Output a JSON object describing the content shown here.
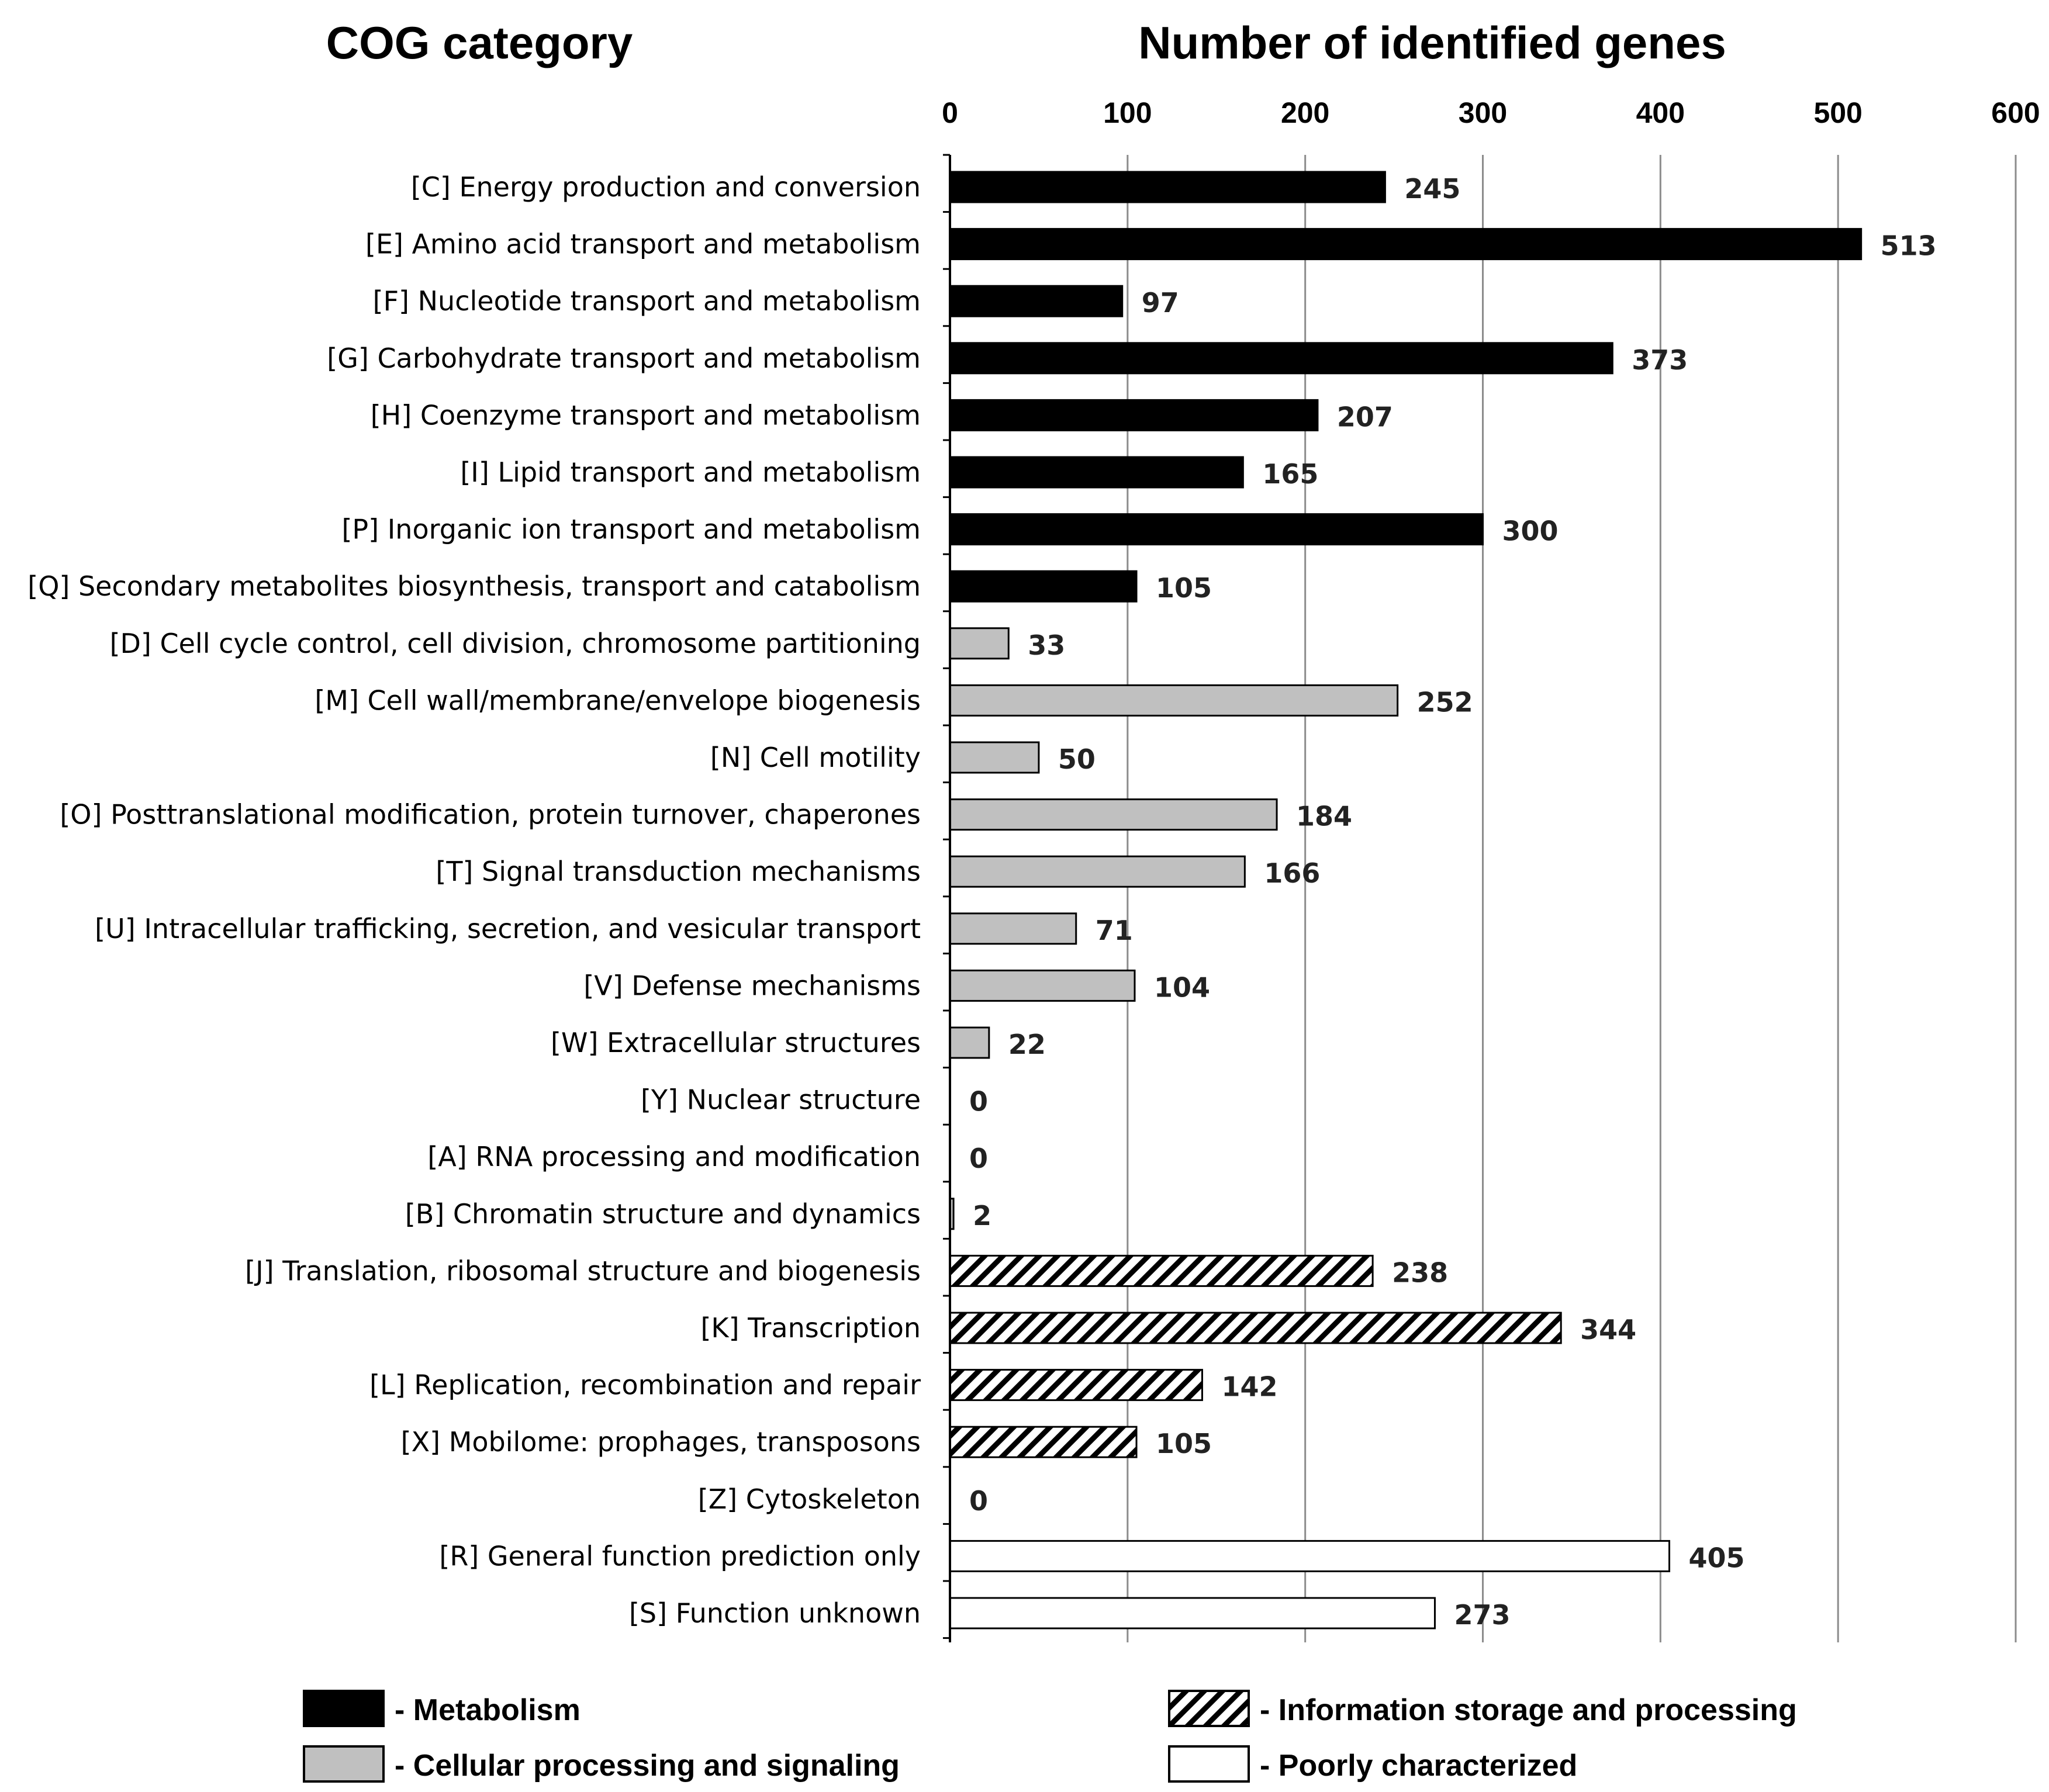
{
  "chart_data": {
    "type": "bar",
    "orientation": "horizontal",
    "title": "Number of identified genes",
    "category_axis_title": "COG category",
    "xlim": [
      0,
      600
    ],
    "ticks": [
      0,
      100,
      200,
      300,
      400,
      500,
      600
    ],
    "grid": true,
    "legend_position": "bottom",
    "groups": [
      {
        "id": "metabolism",
        "label": "- Metabolism",
        "fill": "#000000",
        "pattern": "solid"
      },
      {
        "id": "cellular",
        "label": "- Cellular processing and signaling",
        "fill": "#c0c0c0",
        "pattern": "solid"
      },
      {
        "id": "information",
        "label": "- Information storage and processing",
        "fill": "#ffffff",
        "pattern": "hatch"
      },
      {
        "id": "poorly",
        "label": "- Poorly characterized",
        "fill": "#ffffff",
        "pattern": "solid"
      }
    ],
    "categories": [
      "[C] Energy production and conversion",
      "[E] Amino acid transport and metabolism",
      "[F] Nucleotide transport and metabolism",
      "[G] Carbohydrate transport and metabolism",
      "[H] Coenzyme transport and metabolism",
      "[I] Lipid transport and metabolism",
      "[P] Inorganic ion transport and metabolism",
      "[Q] Secondary metabolites biosynthesis, transport and catabolism",
      "[D] Cell cycle control, cell division, chromosome partitioning",
      "[M] Cell wall/membrane/envelope biogenesis",
      "[N] Cell motility",
      "[O] Posttranslational modification, protein turnover, chaperones",
      "[T] Signal transduction mechanisms",
      "[U] Intracellular trafficking, secretion, and vesicular transport",
      "[V] Defense mechanisms",
      "[W] Extracellular structures",
      "[Y] Nuclear structure",
      "[A] RNA processing and modification",
      "[B] Chromatin structure and dynamics",
      "[J] Translation, ribosomal structure and biogenesis",
      "[K] Transcription",
      "[L] Replication, recombination and repair",
      "[X] Mobilome: prophages, transposons",
      "[Z] Cytoskeleton",
      "[R] General function prediction only",
      "[S] Function unknown"
    ],
    "values": [
      245,
      513,
      97,
      373,
      207,
      165,
      300,
      105,
      33,
      252,
      50,
      184,
      166,
      71,
      104,
      22,
      0,
      0,
      2,
      238,
      344,
      142,
      105,
      0,
      405,
      273
    ],
    "category_groups": [
      "metabolism",
      "metabolism",
      "metabolism",
      "metabolism",
      "metabolism",
      "metabolism",
      "metabolism",
      "metabolism",
      "cellular",
      "cellular",
      "cellular",
      "cellular",
      "cellular",
      "cellular",
      "cellular",
      "cellular",
      "cellular",
      "cellular",
      "cellular",
      "information",
      "information",
      "information",
      "information",
      "information",
      "poorly",
      "poorly"
    ]
  }
}
